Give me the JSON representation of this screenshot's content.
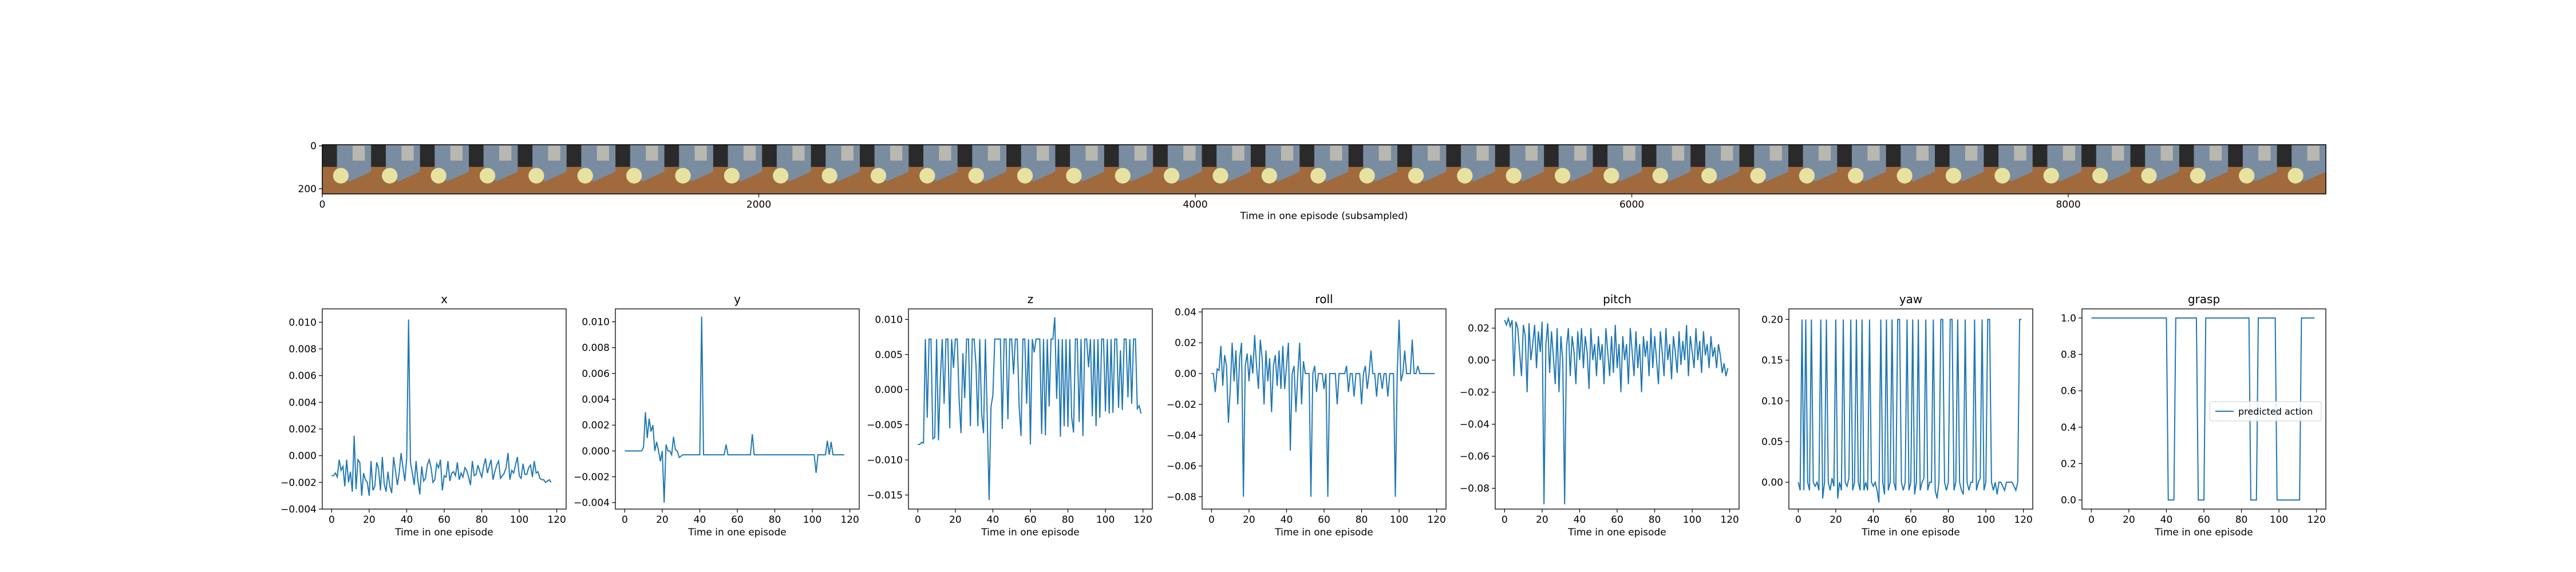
{
  "strip": {
    "xlabel": "Time in one episode (subsampled)",
    "xticks": [
      0,
      2000,
      4000,
      6000,
      8000
    ],
    "yticks": [
      0,
      200
    ],
    "frame_count": 41,
    "colors": {
      "wood": "#a06a3c",
      "blue": "#7a8ca0",
      "dark": "#2a2a2a",
      "yellow": "#e8e2a0",
      "gray": "#b8b8b0"
    }
  },
  "chart_data": [
    {
      "type": "line",
      "title": "x",
      "xlabel": "Time in one episode",
      "xlim": [
        -5,
        125
      ],
      "ylim": [
        -0.004,
        0.011
      ],
      "xticks": [
        0,
        20,
        40,
        60,
        80,
        100,
        120
      ],
      "yticks": [
        -0.004,
        -0.002,
        0.0,
        0.002,
        0.004,
        0.006,
        0.008,
        0.01
      ],
      "ytick_labels": [
        "−0.004",
        "−0.002",
        "0.000",
        "0.002",
        "0.004",
        "0.006",
        "0.008",
        "0.010"
      ],
      "color": "#1f77b4",
      "values": [
        -0.0015,
        -0.0015,
        -0.0013,
        -0.0016,
        -0.0003,
        -0.0011,
        -0.0008,
        -0.0023,
        -0.0003,
        -0.002,
        -0.0012,
        -0.0027,
        0.0015,
        -0.0025,
        -0.0003,
        -0.0005,
        -0.003,
        -0.0013,
        -0.0018,
        -0.002,
        -0.003,
        -0.0004,
        -0.0026,
        -0.0023,
        -0.0005,
        -0.001,
        -0.0026,
        -0.0001,
        -0.0021,
        -0.0027,
        -0.0012,
        -0.0023,
        -0.0028,
        -0.0001,
        -0.0011,
        -0.0022,
        -0.0013,
        0.0002,
        -0.0009,
        -0.0019,
        -0.0002,
        0.0102,
        -0.0005,
        -0.0013,
        -0.0022,
        -0.0004,
        -0.0019,
        -0.0029,
        -0.0008,
        -0.0019,
        -0.0017,
        -0.0007,
        -0.0003,
        -0.0009,
        -0.002,
        -0.0018,
        -0.0006,
        -0.0009,
        -0.0003,
        -0.0026,
        -0.0015,
        -0.0016,
        -0.0004,
        -0.0019,
        -0.0013,
        -0.0012,
        -0.0015,
        -0.0005,
        -0.0018,
        -0.0013,
        -0.0016,
        -0.0009,
        -0.0011,
        -0.0016,
        -0.0022,
        -0.0004,
        -0.0015,
        -0.0014,
        -0.0007,
        -0.0012,
        -0.0016,
        -0.0008,
        -0.0002,
        -0.0013,
        -0.0008,
        -0.0003,
        -0.0018,
        -0.0012,
        -0.0007,
        -0.0004,
        -0.0017,
        -0.0015,
        -0.0013,
        -0.0009,
        0.0002,
        -0.0018,
        -0.0011,
        -0.0013,
        -0.0007,
        -0.0001,
        -0.0015,
        -0.0017,
        -0.0006,
        -0.0014,
        -0.0014,
        -0.0009,
        -0.0007,
        -0.0016,
        -0.0004,
        -0.0013,
        -0.0012,
        -0.0017,
        -0.0018,
        -0.0018,
        -0.002,
        -0.0019,
        -0.0018,
        -0.002
      ]
    },
    {
      "type": "line",
      "title": "y",
      "xlabel": "Time in one episode",
      "xlim": [
        -5,
        125
      ],
      "ylim": [
        -0.0045,
        0.011
      ],
      "xticks": [
        0,
        20,
        40,
        60,
        80,
        100,
        120
      ],
      "yticks": [
        -0.004,
        -0.002,
        0.0,
        0.002,
        0.004,
        0.006,
        0.008,
        0.01
      ],
      "ytick_labels": [
        "−0.004",
        "−0.002",
        "0.000",
        "0.002",
        "0.004",
        "0.006",
        "0.008",
        "0.010"
      ],
      "color": "#1f77b4",
      "values": [
        0.0,
        0.0,
        0.0,
        0.0,
        0.0,
        0.0,
        0.0,
        0.0,
        0.0,
        0.0,
        0.0003,
        0.003,
        0.001,
        0.0025,
        0.0015,
        0.002,
        0.0,
        0.0007,
        0.0,
        -0.0008,
        0.0,
        -0.004,
        0.0005,
        0.0,
        0.0,
        -0.0003,
        0.0011,
        0.0001,
        0.0,
        -0.0005,
        -0.0004,
        -0.0003,
        -0.0003,
        -0.0003,
        -0.0003,
        -0.0003,
        -0.0003,
        -0.0003,
        -0.0003,
        -0.0003,
        -0.0003,
        0.0104,
        -0.0003,
        -0.0003,
        -0.0003,
        -0.0003,
        -0.0003,
        -0.0003,
        -0.0003,
        -0.0003,
        -0.0003,
        -0.0003,
        -0.0003,
        -0.0003,
        0.0005,
        -0.0003,
        -0.0003,
        -0.0003,
        -0.0003,
        -0.0003,
        -0.0003,
        -0.0003,
        -0.0003,
        -0.0003,
        -0.0003,
        -0.0003,
        -0.0003,
        -0.0003,
        0.0013,
        -0.0003,
        -0.0003,
        -0.0003,
        -0.0003,
        -0.0003,
        -0.0003,
        -0.0003,
        -0.0003,
        -0.0003,
        -0.0003,
        -0.0003,
        -0.0003,
        -0.0003,
        -0.0003,
        -0.0003,
        -0.0003,
        -0.0003,
        -0.0003,
        -0.0003,
        -0.0003,
        -0.0003,
        -0.0003,
        -0.0003,
        -0.0003,
        -0.0003,
        -0.0003,
        -0.0003,
        -0.0003,
        -0.0003,
        -0.0003,
        -0.0003,
        -0.0003,
        -0.0003,
        -0.0017,
        -0.0003,
        -0.0003,
        -0.0003,
        -0.0003,
        -0.0003,
        0.0008,
        -0.0003,
        0.0007,
        -0.0003,
        -0.0003,
        -0.0003,
        -0.0003,
        -0.0003,
        -0.0003,
        -0.0003
      ]
    },
    {
      "type": "line",
      "title": "z",
      "xlabel": "Time in one episode",
      "xlim": [
        -5,
        125
      ],
      "ylim": [
        -0.017,
        0.0115
      ],
      "xticks": [
        0,
        20,
        40,
        60,
        80,
        100,
        120
      ],
      "yticks": [
        -0.015,
        -0.01,
        -0.005,
        0.0,
        0.005,
        0.01
      ],
      "ytick_labels": [
        "−0.015",
        "−0.010",
        "−0.005",
        "0.000",
        "0.005",
        "0.010"
      ],
      "color": "#1f77b4",
      "values": [
        -0.0078,
        -0.0078,
        -0.0075,
        -0.0076,
        0.0072,
        -0.004,
        0.0072,
        0.0072,
        -0.007,
        -0.0068,
        0.0072,
        -0.0072,
        0.0015,
        0.0072,
        -0.002,
        0.0072,
        0.0072,
        -0.0055,
        0.0072,
        0.0031,
        0.0072,
        0.0072,
        -0.0014,
        -0.0062,
        0.0052,
        -0.0012,
        0.0072,
        0.0072,
        -0.0052,
        0.0072,
        0.0072,
        0.0035,
        -0.0052,
        0.0072,
        -0.0034,
        -0.0062,
        0.0072,
        -0.004,
        -0.0157,
        -0.0024,
        -0.0008,
        0.0072,
        0.0072,
        0.0072,
        0.0072,
        -0.0056,
        0.0072,
        0.0072,
        -0.0042,
        0.0072,
        0.0072,
        0.0022,
        0.0072,
        0.0072,
        -0.0024,
        -0.0066,
        0.0072,
        0.0072,
        -0.002,
        0.0072,
        -0.0078,
        0.0072,
        0.0053,
        0.0072,
        0.0072,
        0.0072,
        -0.0063,
        0.0072,
        -0.0065,
        0.0072,
        -0.0024,
        0.0072,
        0.0072,
        0.0103,
        -0.0013,
        0.0072,
        -0.0067,
        0.0072,
        -0.0052,
        0.0072,
        -0.0053,
        0.0072,
        -0.0039,
        -0.0061,
        0.0072,
        0.0072,
        -0.0046,
        0.0072,
        -0.0066,
        0.0072,
        0.0072,
        0.0032,
        0.0072,
        -0.0038,
        0.0072,
        -0.0052,
        0.0072,
        -0.004,
        0.0072,
        0.0072,
        -0.0031,
        0.0072,
        -0.0034,
        0.0072,
        -0.0033,
        0.0072,
        0.0072,
        -0.0026,
        0.0056,
        -0.0029,
        0.0072,
        0.0072,
        -0.0011,
        0.0072,
        -0.002,
        0.0072,
        0.0072,
        -0.0027,
        -0.0023,
        -0.0034
      ]
    },
    {
      "type": "line",
      "title": "roll",
      "xlabel": "Time in one episode",
      "xlim": [
        -5,
        125
      ],
      "ylim": [
        -0.088,
        0.042
      ],
      "xticks": [
        0,
        20,
        40,
        60,
        80,
        100,
        120
      ],
      "yticks": [
        -0.08,
        -0.06,
        -0.04,
        -0.02,
        0.0,
        0.02,
        0.04
      ],
      "ytick_labels": [
        "−0.08",
        "−0.06",
        "−0.04",
        "−0.02",
        "0.00",
        "0.02",
        "0.04"
      ],
      "color": "#1f77b4",
      "values": [
        0.0,
        0.0,
        -0.012,
        0.003,
        0.002,
        0.018,
        -0.008,
        0.012,
        0.005,
        -0.032,
        -0.01,
        0.02,
        -0.005,
        0.015,
        -0.02,
        0.01,
        0.02,
        -0.08,
        0.005,
        0.013,
        -0.005,
        0.012,
        0.0,
        0.025,
        0.005,
        -0.01,
        0.022,
        0.01,
        -0.02,
        0.015,
        -0.005,
        0.01,
        -0.025,
        0.005,
        0.012,
        -0.008,
        0.015,
        -0.01,
        0.018,
        -0.01,
        0.005,
        0.02,
        -0.05,
        0.0,
        0.005,
        -0.025,
        0.0,
        0.02,
        -0.02,
        0.008,
        0.0,
        0.0,
        0.0,
        -0.08,
        0.0,
        0.005,
        -0.012,
        0.0,
        0.0,
        0.0,
        -0.01,
        0.0,
        -0.08,
        0.0,
        0.0,
        0.0,
        0.0,
        -0.02,
        0.0,
        0.0,
        0.0,
        0.0,
        0.005,
        -0.012,
        0.0,
        0.0,
        -0.015,
        0.0,
        0.0,
        0.0,
        -0.02,
        0.0,
        0.005,
        -0.01,
        0.0,
        0.015,
        0.0,
        0.0,
        -0.015,
        0.0,
        0.0,
        -0.01,
        0.0,
        0.0,
        -0.015,
        0.0,
        0.0,
        0.0,
        -0.08,
        0.0,
        0.035,
        -0.005,
        0.0,
        0.015,
        0.0,
        0.0,
        0.0,
        0.022,
        0.0,
        0.0,
        0.005,
        0.0,
        0.0,
        0.0,
        0.0,
        0.0,
        0.0,
        0.0,
        0.0,
        0.0
      ]
    },
    {
      "type": "line",
      "title": "pitch",
      "xlabel": "Time in one episode",
      "xlim": [
        -5,
        125
      ],
      "ylim": [
        -0.093,
        0.032
      ],
      "xticks": [
        0,
        20,
        40,
        60,
        80,
        100,
        120
      ],
      "yticks": [
        -0.08,
        -0.06,
        -0.04,
        -0.02,
        0.0,
        0.02
      ],
      "ytick_labels": [
        "−0.08",
        "−0.06",
        "−0.04",
        "−0.02",
        "0.00",
        "0.02"
      ],
      "color": "#1f77b4",
      "values": [
        0.025,
        0.022,
        0.026,
        0.021,
        0.025,
        -0.01,
        0.024,
        0.02,
        0.005,
        -0.01,
        0.022,
        0.015,
        -0.02,
        0.023,
        0.0,
        0.01,
        0.022,
        -0.005,
        0.018,
        0.005,
        0.024,
        -0.09,
        0.01,
        0.023,
        -0.008,
        0.018,
        0.002,
        -0.015,
        0.02,
        -0.02,
        0.015,
        0.0,
        -0.09,
        0.008,
        0.02,
        -0.01,
        0.015,
        0.005,
        -0.015,
        0.018,
        0.0,
        0.02,
        -0.005,
        0.015,
        0.005,
        -0.018,
        0.02,
        0.0,
        0.01,
        -0.01,
        0.015,
        0.0,
        0.01,
        -0.015,
        0.02,
        0.005,
        -0.01,
        0.015,
        -0.008,
        0.022,
        -0.005,
        0.01,
        -0.02,
        0.015,
        0.0,
        0.01,
        -0.015,
        0.02,
        0.005,
        -0.01,
        0.018,
        -0.005,
        0.01,
        -0.02,
        0.015,
        0.002,
        0.012,
        -0.01,
        0.02,
        -0.005,
        0.015,
        0.0,
        -0.015,
        0.018,
        0.005,
        -0.01,
        0.02,
        0.0,
        0.01,
        -0.012,
        0.015,
        0.005,
        -0.008,
        0.018,
        -0.003,
        0.012,
        0.0,
        0.022,
        -0.01,
        0.015,
        0.005,
        -0.005,
        0.02,
        0.0,
        0.012,
        -0.008,
        0.018,
        0.003,
        0.01,
        -0.005,
        0.015,
        0.002,
        0.008,
        -0.005,
        0.01,
        0.003,
        -0.008,
        -0.002,
        -0.01,
        -0.005
      ]
    },
    {
      "type": "line",
      "title": "yaw",
      "xlabel": "Time in one episode",
      "xlim": [
        -5,
        125
      ],
      "ylim": [
        -0.033,
        0.213
      ],
      "xticks": [
        0,
        20,
        40,
        60,
        80,
        100,
        120
      ],
      "yticks": [
        0.0,
        0.05,
        0.1,
        0.15,
        0.2
      ],
      "ytick_labels": [
        "0.00",
        "0.05",
        "0.10",
        "0.15",
        "0.20"
      ],
      "color": "#1f77b4",
      "values": [
        0.0,
        -0.01,
        0.2,
        -0.01,
        0.2,
        0.0,
        -0.01,
        0.2,
        0.0,
        -0.005,
        0.0,
        -0.01,
        0.2,
        -0.02,
        0.0,
        0.2,
        0.0,
        -0.01,
        0.005,
        -0.005,
        0.2,
        -0.02,
        0.0,
        -0.01,
        0.2,
        0.0,
        -0.005,
        0.005,
        0.2,
        -0.01,
        0.0,
        0.2,
        0.0,
        -0.01,
        0.2,
        -0.01,
        0.0,
        -0.01,
        0.2,
        0.0,
        -0.005,
        0.0,
        -0.01,
        -0.025,
        0.2,
        0.0,
        -0.015,
        0.2,
        -0.01,
        0.0,
        0.2,
        0.0,
        -0.01,
        0.2,
        0.2,
        0.0,
        -0.01,
        0.0,
        0.2,
        -0.01,
        0.0,
        0.2,
        -0.015,
        0.0,
        0.2,
        -0.01,
        0.0,
        0.005,
        0.2,
        -0.01,
        0.0,
        0.0,
        0.2,
        -0.01,
        -0.02,
        0.0,
        0.2,
        0.2,
        0.0,
        -0.01,
        0.0,
        0.2,
        0.2,
        -0.01,
        0.0,
        0.2,
        0.0,
        -0.01,
        -0.015,
        0.2,
        0.0,
        -0.01,
        0.0,
        0.0,
        0.2,
        -0.01,
        0.0,
        0.005,
        0.2,
        -0.01,
        0.0,
        0.2,
        0.2,
        0.0,
        -0.01,
        0.0,
        -0.015,
        0.0,
        0.0,
        -0.005,
        -0.01,
        0.0,
        0.0,
        0.0,
        0.0,
        -0.005,
        -0.01,
        0.0,
        0.2,
        0.2
      ]
    },
    {
      "type": "line",
      "title": "grasp",
      "xlabel": "Time in one episode",
      "xlim": [
        -5,
        125
      ],
      "ylim": [
        -0.05,
        1.05
      ],
      "xticks": [
        0,
        20,
        40,
        60,
        80,
        100,
        120
      ],
      "yticks": [
        0.0,
        0.2,
        0.4,
        0.6,
        0.8,
        1.0
      ],
      "ytick_labels": [
        "0.0",
        "0.2",
        "0.4",
        "0.6",
        "0.8",
        "1.0"
      ],
      "color": "#1f77b4",
      "legend": {
        "label": "predicted action",
        "loc": "center right"
      },
      "values": [
        1,
        1,
        1,
        1,
        1,
        1,
        1,
        1,
        1,
        1,
        1,
        1,
        1,
        1,
        1,
        1,
        1,
        1,
        1,
        1,
        1,
        1,
        1,
        1,
        1,
        1,
        1,
        1,
        1,
        1,
        1,
        1,
        1,
        1,
        1,
        1,
        1,
        1,
        1,
        1,
        1,
        0,
        0,
        0,
        0,
        1,
        1,
        1,
        1,
        1,
        1,
        1,
        1,
        1,
        1,
        1,
        1,
        0,
        0,
        0,
        0,
        1,
        1,
        1,
        1,
        1,
        1,
        1,
        1,
        1,
        1,
        1,
        1,
        1,
        1,
        1,
        1,
        1,
        1,
        1,
        1,
        1,
        1,
        1,
        1,
        0,
        0,
        0,
        0,
        1,
        1,
        1,
        1,
        1,
        1,
        1,
        1,
        1,
        1,
        0,
        0,
        0,
        0,
        0,
        0,
        0,
        0,
        0,
        0,
        0,
        0,
        0,
        1,
        1,
        1,
        1,
        1,
        1,
        1,
        1
      ]
    }
  ]
}
